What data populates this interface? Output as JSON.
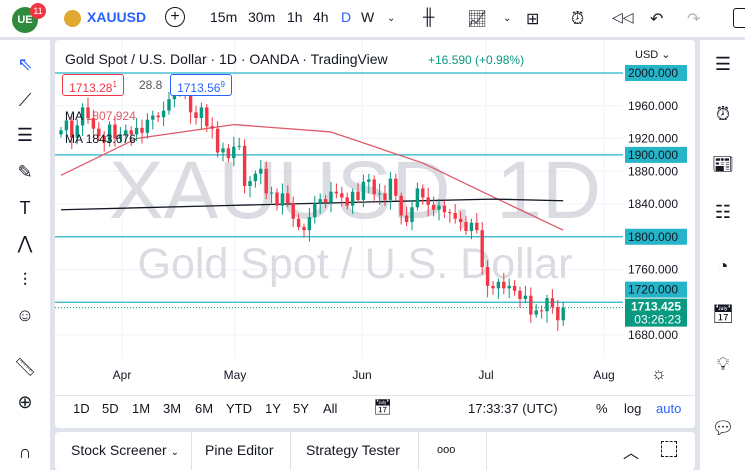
{
  "topbar": {
    "badge": "11",
    "symbol": "XAUUSD",
    "intervals": [
      "15m",
      "30m",
      "1h",
      "4h",
      "D",
      "W"
    ],
    "active_interval": "D"
  },
  "legend": {
    "title": "Gold Spot / U.S. Dollar · 1D · OANDA · TradingView",
    "change": "+16.590 (+0.98%)",
    "bid": "1713.28",
    "bid_sup": "1",
    "spread": "28.8",
    "ask": "1713.56",
    "ask_sup": "9",
    "ma1_label": "MA",
    "ma1_value": "1807.924",
    "ma2_label": "MA",
    "ma2_value": "1843.676"
  },
  "watermark": {
    "line1": "XAUUSD, 1D",
    "line2": "Gold Spot / U.S. Dollar"
  },
  "currency": "USD",
  "price_labels": [
    "1960.000",
    "1920.000",
    "1880.000",
    "1840.000",
    "1760.000",
    "1680.000"
  ],
  "level_labels": [
    "2000.000",
    "1900.000",
    "1800.000",
    "1720.000"
  ],
  "current": {
    "price": "1713.425",
    "countdown": "03:26:23"
  },
  "time_labels": [
    "Apr",
    "May",
    "Jun",
    "Jul",
    "Aug"
  ],
  "bottom_toolbar": {
    "ranges": [
      "1D",
      "5D",
      "1M",
      "3M",
      "6M",
      "YTD",
      "1Y",
      "5Y",
      "All"
    ],
    "clock": "17:33:37 (UTC)",
    "percent": "%",
    "log": "log",
    "auto": "auto"
  },
  "bottom_tabs": [
    "Stock Screener",
    "Pine Editor",
    "Strategy Tester",
    "ooo"
  ],
  "colors": {
    "up": "#089981",
    "down": "#f23645",
    "level": "#26b4c9",
    "ma1": "#e05a6a",
    "ma2": "#131722"
  },
  "chart_data": {
    "type": "candlestick",
    "ylim": [
      1660,
      2030
    ],
    "levels": [
      2000,
      1900,
      1800,
      1720
    ],
    "open0": 1925,
    "closes": [
      1930,
      1942,
      1921,
      1936,
      1958,
      1945,
      1932,
      1923,
      1915,
      1937,
      1920,
      1925,
      1930,
      1925,
      1933,
      1927,
      1943,
      1948,
      1946,
      1954,
      1968,
      1975,
      1978,
      1977,
      1952,
      1945,
      1958,
      1935,
      1932,
      1903,
      1908,
      1896,
      1910,
      1911,
      1862,
      1868,
      1877,
      1883,
      1853,
      1854,
      1838,
      1853,
      1841,
      1822,
      1812,
      1808,
      1824,
      1841,
      1846,
      1842,
      1855,
      1853,
      1848,
      1838,
      1855,
      1845,
      1867,
      1870,
      1852,
      1853,
      1845,
      1871,
      1850,
      1826,
      1818,
      1836,
      1859,
      1848,
      1839,
      1833,
      1838,
      1830,
      1829,
      1822,
      1818,
      1807,
      1817,
      1808,
      1763,
      1740,
      1737,
      1745,
      1737,
      1740,
      1734,
      1724,
      1728,
      1705,
      1710,
      1709,
      1725,
      1714,
      1698,
      1713.425
    ],
    "ma_red": [
      [
        0,
        1875
      ],
      [
        14,
        1920
      ],
      [
        32,
        1937
      ],
      [
        50,
        1928
      ],
      [
        67,
        1890
      ],
      [
        78,
        1855
      ],
      [
        93,
        1808
      ]
    ],
    "ma_black": [
      [
        0,
        1833
      ],
      [
        30,
        1838
      ],
      [
        60,
        1843
      ],
      [
        80,
        1846
      ],
      [
        93,
        1844
      ]
    ]
  }
}
